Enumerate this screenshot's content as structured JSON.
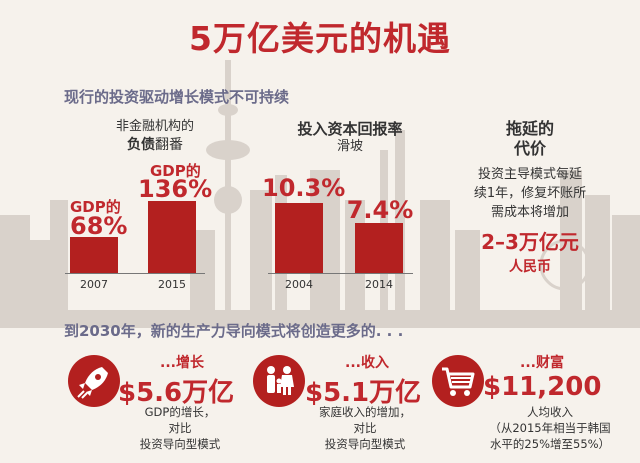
{
  "title": "5万亿美元的机遇",
  "section1_heading": "现行的投资驱动增长模式不可持续",
  "debt_panel": {
    "caption_line1": "非金融机构的",
    "caption_bold": "负债",
    "caption_rest": "翻番",
    "bars": [
      {
        "year": "2007",
        "label": "GDP的",
        "value_text": "68%",
        "value": 68
      },
      {
        "year": "2015",
        "label": "GDP的",
        "value_text": "136%",
        "value": 136
      }
    ]
  },
  "return_panel": {
    "caption_line1": "投入资本回报率",
    "caption_line2": "滑坡",
    "bars": [
      {
        "year": "2004",
        "value_text": "10.3%",
        "value": 10.3
      },
      {
        "year": "2014",
        "value_text": "7.4%",
        "value": 7.4
      }
    ]
  },
  "delay_panel": {
    "title_line1": "拖延的",
    "title_line2": "代价",
    "desc_line1": "投资主导模式每延",
    "desc_line2": "续1年，修复坏账所",
    "desc_line3": "需成本将增加",
    "amount": "2–3万亿元",
    "unit": "人民币"
  },
  "section2_heading": "到2030年，新的生产力导向模式将创造更多的. . .",
  "outcomes": [
    {
      "icon": "rocket-icon",
      "label": "...增长",
      "amount": "$5.6万亿",
      "desc1": "GDP的增长，",
      "desc2": "对比",
      "desc3": "投资导向型模式"
    },
    {
      "icon": "family-icon",
      "label": "...收入",
      "amount": "$5.1万亿",
      "desc1": "家庭收入的增加，",
      "desc2": "对比",
      "desc3": "投资导向型模式"
    },
    {
      "icon": "shopping-cart-icon",
      "label": "...财富",
      "amount": "$11,200",
      "desc1": "人均收入",
      "desc2": "（从2015年相当于韩国",
      "desc3": "水平的25%增至55%）"
    }
  ],
  "colors": {
    "accent": "#c0282d",
    "bar": "#b3201f",
    "background": "#f6f2ec",
    "heading": "#6b6b8a"
  }
}
